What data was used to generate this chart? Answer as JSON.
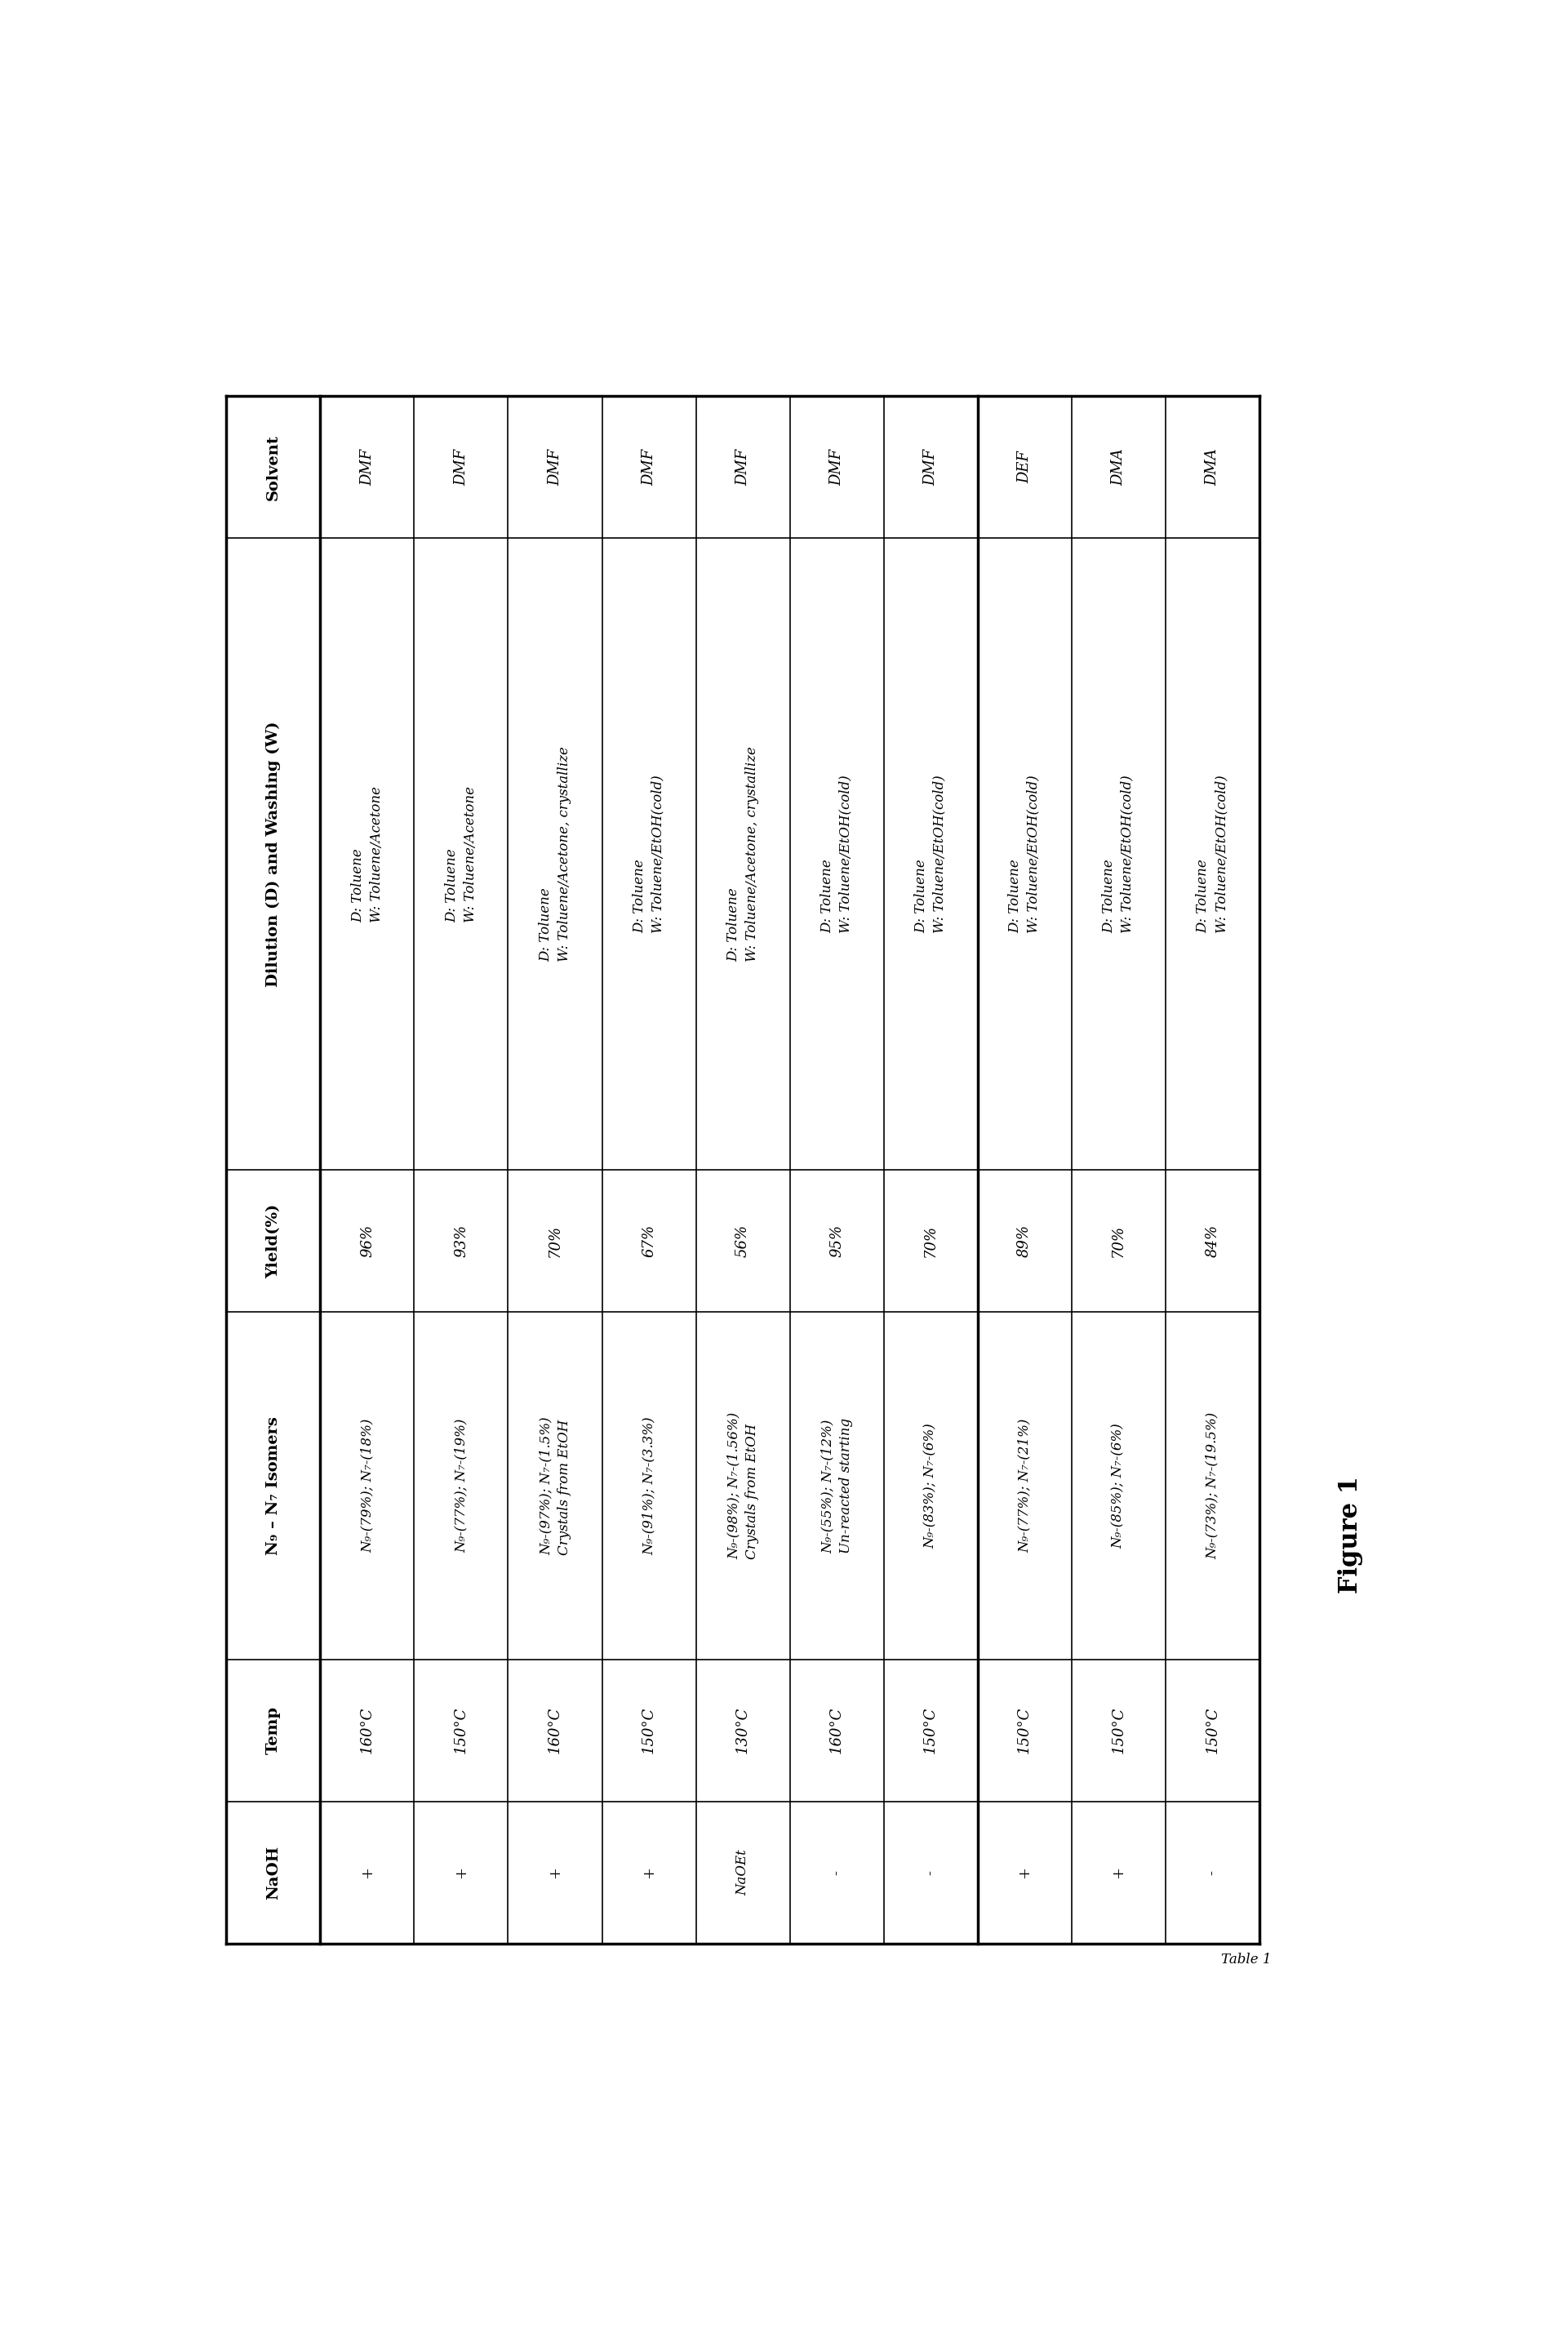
{
  "title": "Figure 1",
  "table_label": "Table 1",
  "columns": [
    "Solvent",
    "Dilution (D) and Washing (W)",
    "Yield(%)",
    "N₉ – N₇ Isomers",
    "Temp",
    "NaOH"
  ],
  "rows": [
    {
      "solvent": "DMF",
      "dilution": "D: Toluene\nW: Toluene/Acetone",
      "yield_pct": "96%",
      "isomers": "N₉-(79%); N₇-(18%)",
      "isomers2": "",
      "temp": "160°C",
      "naoh": "+"
    },
    {
      "solvent": "DMF",
      "dilution": "D: Toluene\nW: Toluene/Acetone",
      "yield_pct": "93%",
      "isomers": "N₉-(77%); N₇-(19%)",
      "isomers2": "",
      "temp": "150°C",
      "naoh": "+"
    },
    {
      "solvent": "DMF",
      "dilution": "D: Toluene\nW: Toluene/Acetone, crystallize",
      "yield_pct": "70%",
      "isomers": "N₉-(97%); N₇-(1.5%)",
      "isomers2": "Crystals from EtOH",
      "temp": "160°C",
      "naoh": "+"
    },
    {
      "solvent": "DMF",
      "dilution": "D: Toluene\nW: Toluene/EtOH(cold)",
      "yield_pct": "67%",
      "isomers": "N₉-(91%); N₇-(3.3%)",
      "isomers2": "",
      "temp": "150°C",
      "naoh": "+"
    },
    {
      "solvent": "DMF",
      "dilution": "D: Toluene\nW: Toluene/Acetone, crystallize",
      "yield_pct": "56%",
      "isomers": "N₉-(98%); N₇-(1.56%)",
      "isomers2": "Crystals from EtOH",
      "temp": "130°C",
      "naoh": "NaOEt"
    },
    {
      "solvent": "DMF",
      "dilution": "D: Toluene\nW: Toluene/EtOH(cold)",
      "yield_pct": "95%",
      "isomers": "N₉-(55%); N₇-(12%)",
      "isomers2": "Un-reacted starting",
      "temp": "160°C",
      "naoh": "-"
    },
    {
      "solvent": "DMF",
      "dilution": "D: Toluene\nW: Toluene/EtOH(cold)",
      "yield_pct": "70%",
      "isomers": "N₉-(83%); N₇-(6%)",
      "isomers2": "",
      "temp": "150°C",
      "naoh": "-"
    },
    {
      "solvent": "DEF",
      "dilution": "D: Toluene\nW: Toluene/EtOH(cold)",
      "yield_pct": "89%",
      "isomers": "N₉-(77%); N₇-(21%)",
      "isomers2": "",
      "temp": "150°C",
      "naoh": "+"
    },
    {
      "solvent": "DMA",
      "dilution": "D: Toluene\nW: Toluene/EtOH(cold)",
      "yield_pct": "70%",
      "isomers": "N₉-(85%); N₇-(6%)",
      "isomers2": "",
      "temp": "150°C",
      "naoh": "+"
    },
    {
      "solvent": "DMA",
      "dilution": "D: Toluene\nW: Toluene/EtOH(cold)",
      "yield_pct": "84%",
      "isomers": "N₉-(73%); N₇-(19.5%)",
      "isomers2": "",
      "temp": "150°C",
      "naoh": "-"
    }
  ],
  "background_color": "#ffffff",
  "border_color": "#000000",
  "body_fontsize": 13,
  "header_fontsize": 14,
  "figure_label_fontsize": 22,
  "table_label_fontsize": 12
}
